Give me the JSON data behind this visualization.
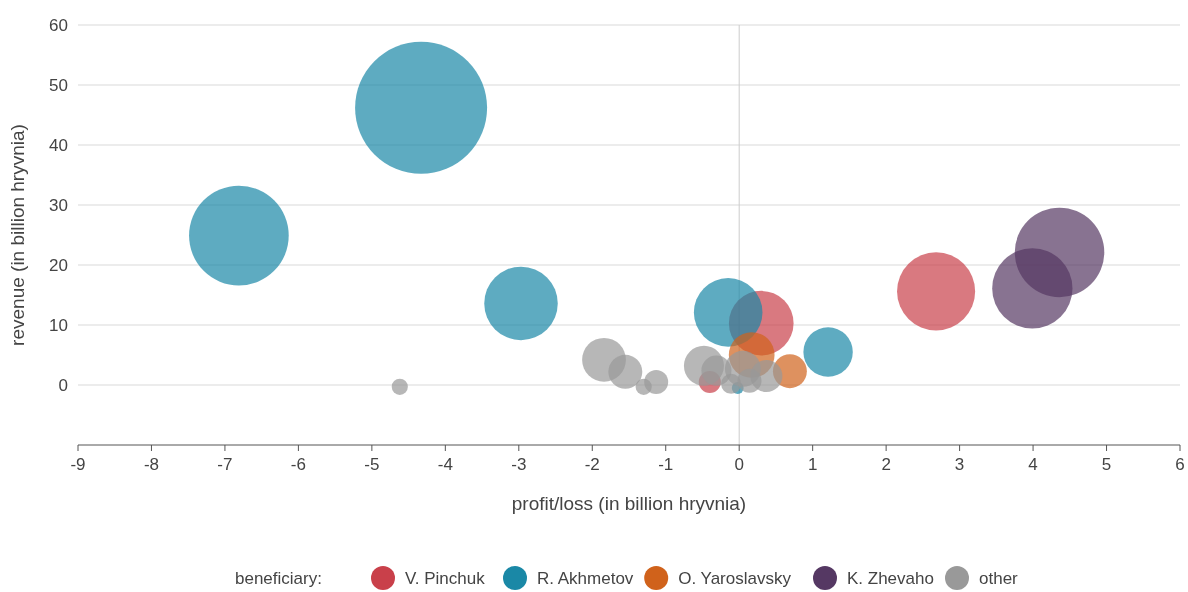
{
  "chart_data": {
    "type": "bubble",
    "xlabel": "profit/loss (in billion hryvnia)",
    "ylabel": "revenue (in billion hryvnia)",
    "legend_title": "beneficiary:",
    "legend": "bottom",
    "grid": "y",
    "xlim": [
      -9,
      6
    ],
    "xticks": [
      -9,
      -8,
      -7,
      -6,
      -5,
      -4,
      -3,
      -2,
      -1,
      0,
      1,
      2,
      3,
      4,
      5,
      6
    ],
    "ylim": [
      -10,
      60
    ],
    "yticks": [
      0,
      10,
      20,
      30,
      40,
      50,
      60
    ],
    "ref_lines": [
      {
        "axis": "x",
        "value": 0,
        "color": "#cccccc"
      }
    ],
    "series": [
      {
        "name": "V. Pinchuk",
        "color": "#c9404a",
        "x": [
          2.68,
          0.3,
          -0.4
        ],
        "values": [
          15.6,
          10.3,
          0.5
        ],
        "sizes": [
          0.35,
          0.24,
          0.028
        ]
      },
      {
        "name": "R. Akhmetov",
        "color": "#1a88a6",
        "x": [
          -4.33,
          -6.81,
          -2.97,
          -0.15,
          1.21,
          -0.02
        ],
        "values": [
          46.2,
          24.9,
          13.6,
          12.1,
          5.5,
          -0.5
        ],
        "sizes": [
          1,
          0.57,
          0.31,
          0.27,
          0.14,
          0.008
        ]
      },
      {
        "name": "O. Yaroslavsky",
        "color": "#d0621b",
        "x": [
          0.17,
          0.69
        ],
        "values": [
          5.0,
          2.3
        ],
        "sizes": [
          0.12,
          0.066
        ]
      },
      {
        "name": "K. Zhevaho",
        "color": "#553863",
        "x": [
          4.36,
          3.99
        ],
        "values": [
          22.1,
          16.1
        ],
        "sizes": [
          0.46,
          0.37
        ]
      },
      {
        "name": "other",
        "color": "#999999",
        "x": [
          -1.84,
          -1.55,
          -1.3,
          -1.13,
          -0.48,
          -0.31,
          0.05,
          0.37,
          -0.11,
          0.14,
          -4.62
        ],
        "values": [
          4.2,
          2.2,
          -0.3,
          0.5,
          3.2,
          2.4,
          2.7,
          1.5,
          0.2,
          0.7,
          -0.3
        ],
        "sizes": [
          0.11,
          0.066,
          0.015,
          0.033,
          0.092,
          0.052,
          0.074,
          0.059,
          0.023,
          0.033,
          0.015
        ]
      }
    ]
  }
}
